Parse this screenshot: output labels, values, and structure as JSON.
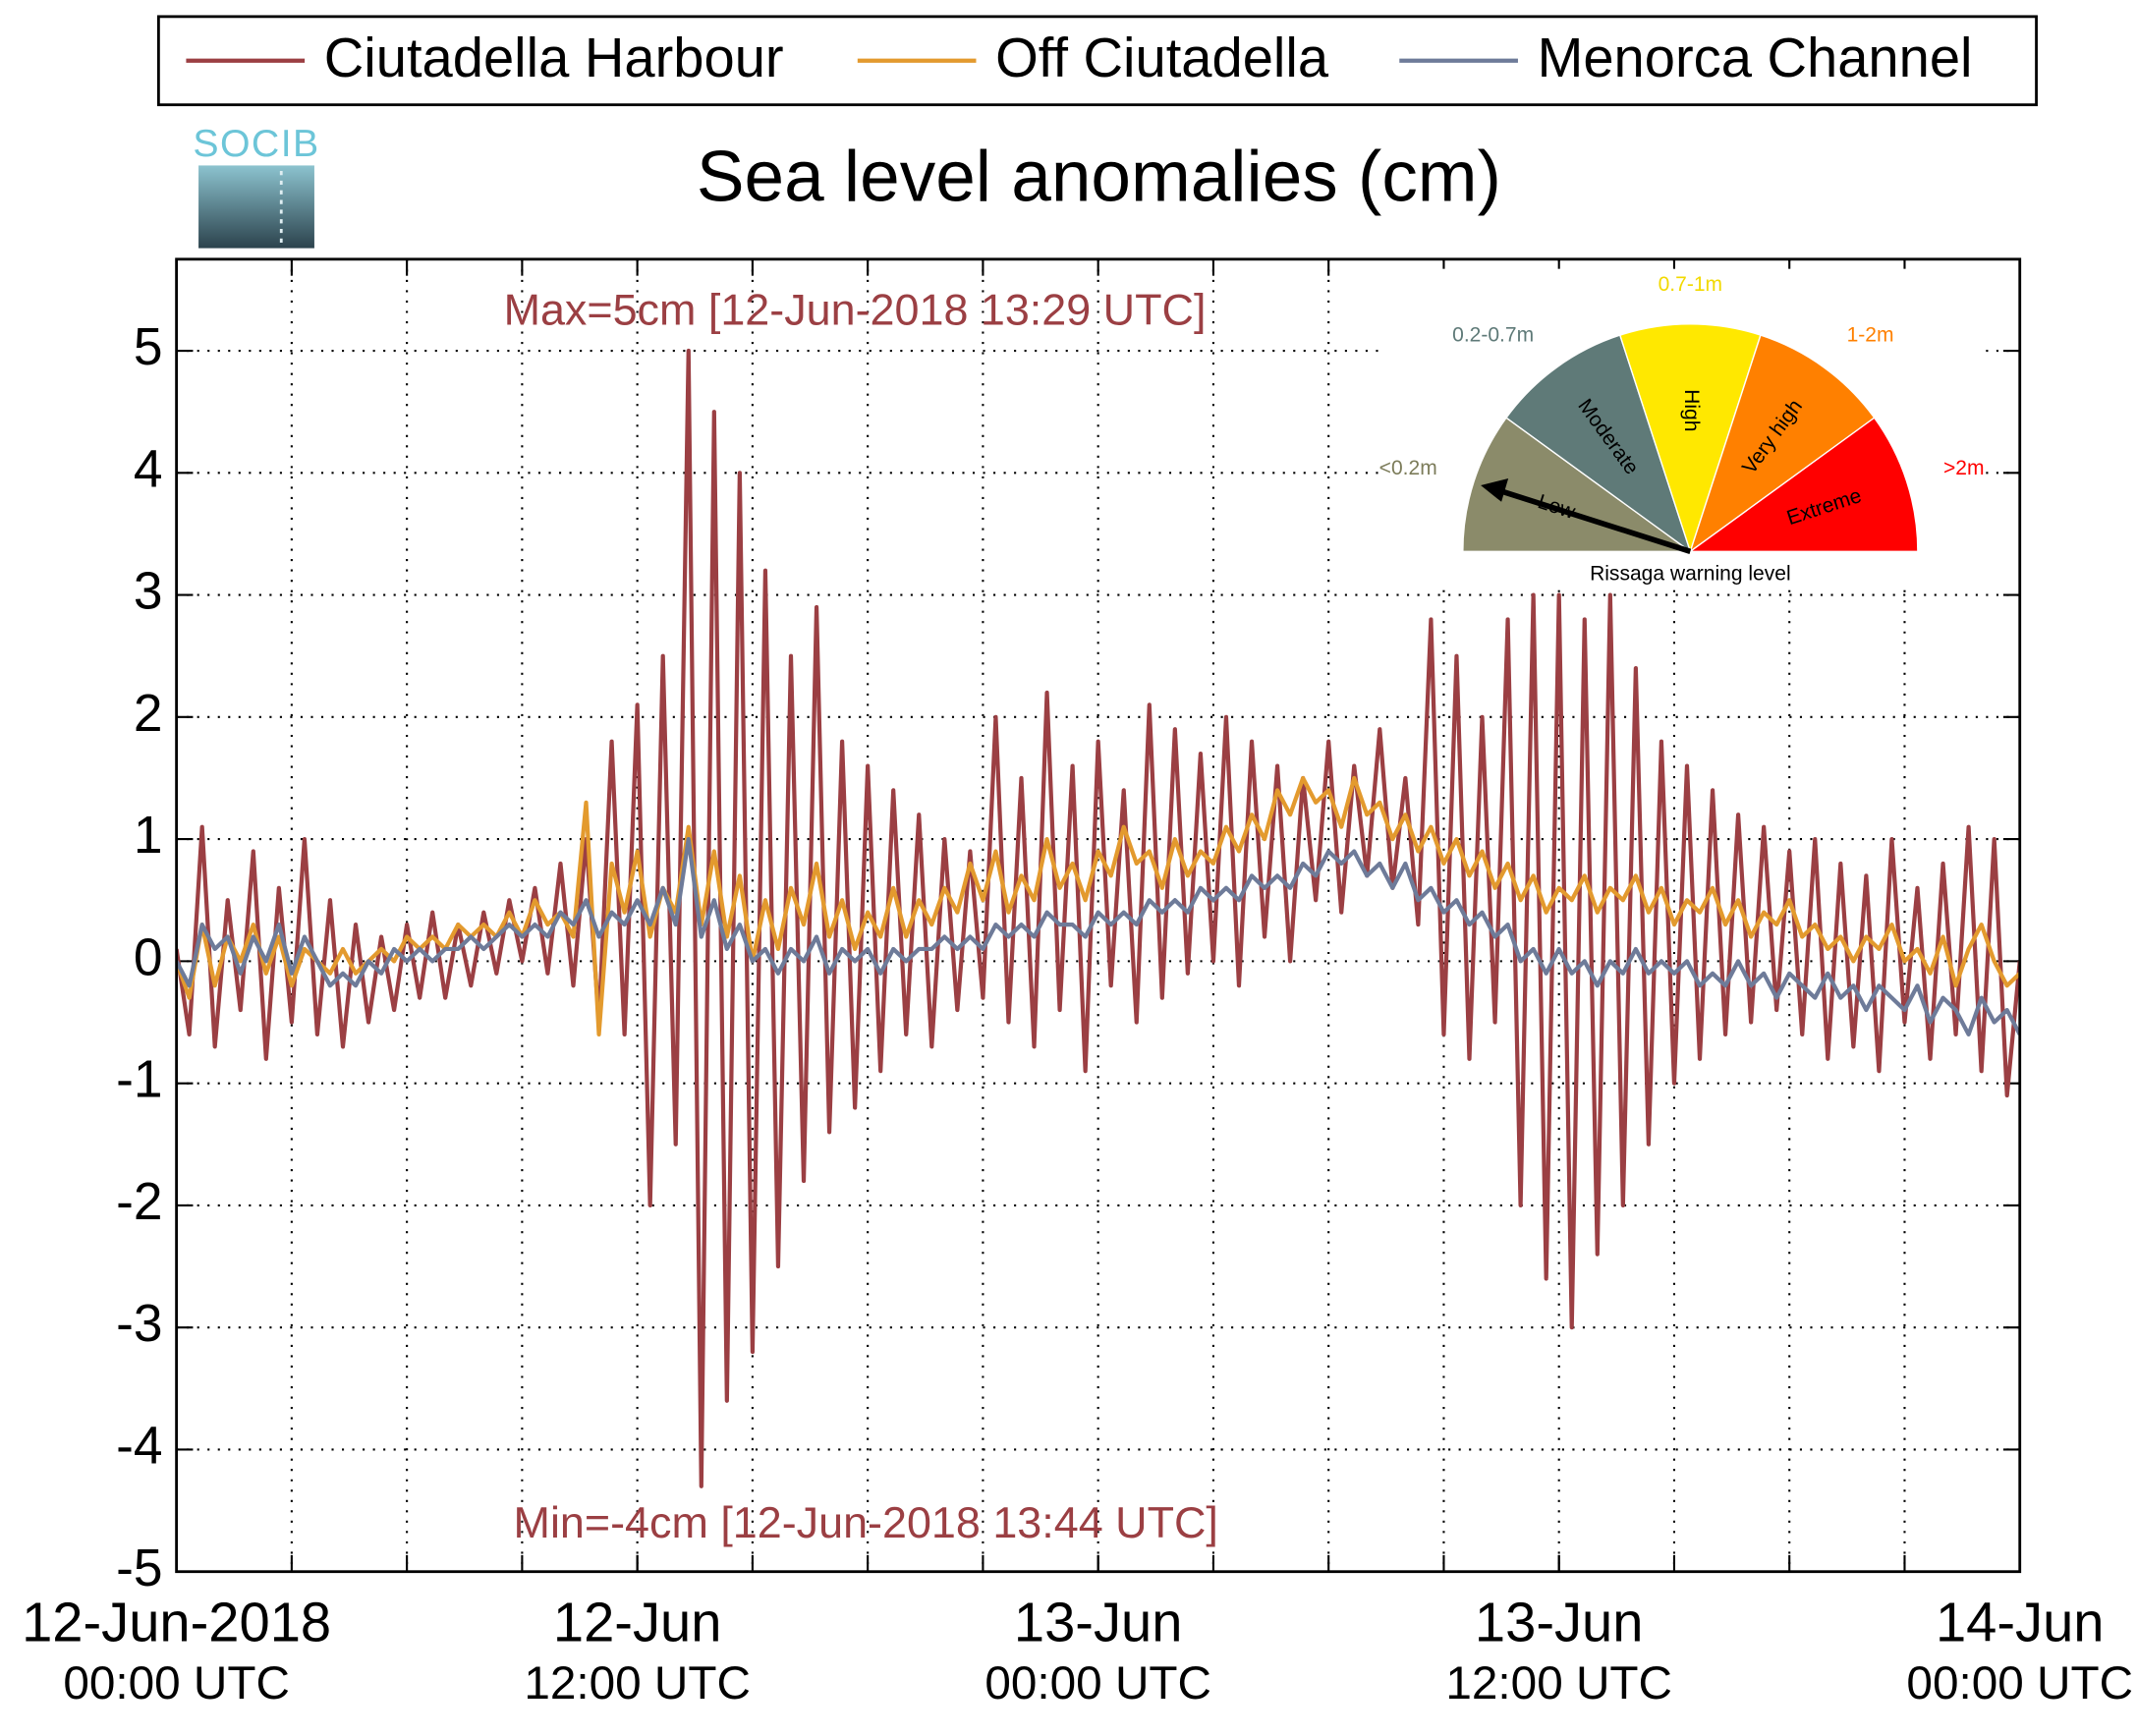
{
  "chart_data": {
    "type": "line",
    "title": "Sea level anomalies (cm)",
    "logo": "SOCIB",
    "legend": "top",
    "grid": true,
    "annotations": [
      {
        "text": "Max=5cm [12-Jun-2018 13:29 UTC]"
      },
      {
        "text": "Min=-4cm [12-Jun-2018 13:44 UTC]"
      }
    ],
    "xlim": [
      0,
      2880
    ],
    "xticks": [
      {
        "value": 0,
        "label": "12-Jun-2018",
        "label2": "00:00 UTC"
      },
      {
        "value": 720,
        "label": "12-Jun",
        "label2": "12:00 UTC"
      },
      {
        "value": 1440,
        "label": "13-Jun",
        "label2": "00:00 UTC"
      },
      {
        "value": 2160,
        "label": "13-Jun",
        "label2": "12:00 UTC"
      },
      {
        "value": 2880,
        "label": "14-Jun",
        "label2": "00:00 UTC"
      }
    ],
    "xminorticks": [
      180,
      360,
      540,
      720,
      900,
      1080,
      1260,
      1440,
      1620,
      1800,
      1980,
      2160,
      2340,
      2520,
      2700
    ],
    "ylim": [
      -5,
      5.75
    ],
    "yticks": [
      -5,
      -4,
      -3,
      -2,
      -1,
      0,
      1,
      2,
      3,
      4,
      5
    ],
    "x": [
      0,
      20,
      40,
      60,
      80,
      100,
      120,
      140,
      160,
      180,
      200,
      220,
      240,
      260,
      280,
      300,
      320,
      340,
      360,
      380,
      400,
      420,
      440,
      460,
      480,
      500,
      520,
      540,
      560,
      580,
      600,
      620,
      640,
      660,
      680,
      700,
      720,
      740,
      760,
      780,
      800,
      820,
      840,
      860,
      880,
      900,
      920,
      940,
      960,
      980,
      1000,
      1020,
      1040,
      1060,
      1080,
      1100,
      1120,
      1140,
      1160,
      1180,
      1200,
      1220,
      1240,
      1260,
      1280,
      1300,
      1320,
      1340,
      1360,
      1380,
      1400,
      1420,
      1440,
      1460,
      1480,
      1500,
      1520,
      1540,
      1560,
      1580,
      1600,
      1620,
      1640,
      1660,
      1680,
      1700,
      1720,
      1740,
      1760,
      1780,
      1800,
      1820,
      1840,
      1860,
      1880,
      1900,
      1920,
      1940,
      1960,
      1980,
      2000,
      2020,
      2040,
      2060,
      2080,
      2100,
      2120,
      2140,
      2160,
      2180,
      2200,
      2220,
      2240,
      2260,
      2280,
      2300,
      2320,
      2340,
      2360,
      2380,
      2400,
      2420,
      2440,
      2460,
      2480,
      2500,
      2520,
      2540,
      2560,
      2580,
      2600,
      2620,
      2640,
      2660,
      2680,
      2700,
      2720,
      2740,
      2760,
      2780,
      2800,
      2820,
      2840,
      2860,
      2880
    ],
    "series": [
      {
        "name": "Ciutadella Harbour",
        "color": "#9b3f43",
        "values": [
          0.1,
          -0.6,
          1.1,
          -0.7,
          0.5,
          -0.4,
          0.9,
          -0.8,
          0.6,
          -0.5,
          1.0,
          -0.6,
          0.5,
          -0.7,
          0.3,
          -0.5,
          0.2,
          -0.4,
          0.3,
          -0.3,
          0.4,
          -0.3,
          0.3,
          -0.2,
          0.4,
          -0.1,
          0.5,
          0.0,
          0.6,
          -0.1,
          0.8,
          -0.2,
          1.0,
          -0.5,
          1.8,
          -0.6,
          2.1,
          -2.0,
          2.5,
          -1.5,
          5.0,
          -4.3,
          4.5,
          -3.6,
          4.0,
          -3.2,
          3.2,
          -2.5,
          2.5,
          -1.8,
          2.9,
          -1.4,
          1.8,
          -1.2,
          1.6,
          -0.9,
          1.4,
          -0.6,
          1.2,
          -0.7,
          1.0,
          -0.4,
          0.9,
          -0.3,
          2.0,
          -0.5,
          1.5,
          -0.7,
          2.2,
          -0.4,
          1.6,
          -0.9,
          1.8,
          -0.2,
          1.4,
          -0.5,
          2.1,
          -0.3,
          1.9,
          -0.1,
          1.7,
          0.0,
          2.0,
          -0.2,
          1.8,
          0.2,
          1.6,
          0.0,
          1.5,
          0.5,
          1.8,
          0.4,
          1.6,
          0.7,
          1.9,
          0.6,
          1.5,
          0.3,
          2.8,
          -0.6,
          2.5,
          -0.8,
          2.0,
          -0.5,
          2.8,
          -2.0,
          3.0,
          -2.6,
          3.0,
          -3.0,
          2.8,
          -2.4,
          3.0,
          -2.0,
          2.4,
          -1.5,
          1.8,
          -1.0,
          1.6,
          -0.8,
          1.4,
          -0.6,
          1.2,
          -0.5,
          1.1,
          -0.4,
          0.9,
          -0.6,
          1.0,
          -0.8,
          0.8,
          -0.7,
          0.7,
          -0.9,
          1.0,
          -0.5,
          0.6,
          -0.8,
          0.8,
          -0.6,
          1.1,
          -0.9,
          1.0,
          -1.1,
          0.0
        ]
      },
      {
        "name": "Off Ciutadella",
        "color": "#e39a2e",
        "values": [
          0.0,
          -0.3,
          0.3,
          -0.2,
          0.2,
          0.0,
          0.3,
          -0.1,
          0.2,
          -0.2,
          0.1,
          0.0,
          -0.1,
          0.1,
          -0.1,
          0.0,
          0.1,
          0.0,
          0.2,
          0.1,
          0.2,
          0.1,
          0.3,
          0.2,
          0.3,
          0.2,
          0.4,
          0.2,
          0.5,
          0.3,
          0.4,
          0.2,
          1.3,
          -0.6,
          0.8,
          0.4,
          0.9,
          0.2,
          0.6,
          0.4,
          1.1,
          0.3,
          0.9,
          0.2,
          0.7,
          0.0,
          0.5,
          0.1,
          0.6,
          0.3,
          0.8,
          0.2,
          0.5,
          0.1,
          0.4,
          0.2,
          0.6,
          0.2,
          0.5,
          0.3,
          0.6,
          0.4,
          0.8,
          0.5,
          0.9,
          0.4,
          0.7,
          0.5,
          1.0,
          0.6,
          0.8,
          0.5,
          0.9,
          0.7,
          1.1,
          0.8,
          0.9,
          0.6,
          1.0,
          0.7,
          0.9,
          0.8,
          1.1,
          0.9,
          1.2,
          1.0,
          1.4,
          1.2,
          1.5,
          1.3,
          1.4,
          1.1,
          1.5,
          1.2,
          1.3,
          1.0,
          1.2,
          0.9,
          1.1,
          0.8,
          1.0,
          0.7,
          0.9,
          0.6,
          0.8,
          0.5,
          0.7,
          0.4,
          0.6,
          0.5,
          0.7,
          0.4,
          0.6,
          0.5,
          0.7,
          0.4,
          0.6,
          0.3,
          0.5,
          0.4,
          0.6,
          0.3,
          0.5,
          0.2,
          0.4,
          0.3,
          0.5,
          0.2,
          0.3,
          0.1,
          0.2,
          0.0,
          0.2,
          0.1,
          0.3,
          0.0,
          0.1,
          -0.1,
          0.2,
          -0.2,
          0.1,
          0.3,
          0.0,
          -0.2,
          -0.1
        ]
      },
      {
        "name": "Menorca Channel",
        "color": "#6e7b99",
        "values": [
          0.0,
          -0.2,
          0.3,
          0.1,
          0.2,
          -0.1,
          0.2,
          0.0,
          0.3,
          -0.1,
          0.2,
          0.0,
          -0.2,
          -0.1,
          -0.2,
          0.0,
          -0.1,
          0.1,
          0.0,
          0.1,
          0.0,
          0.1,
          0.1,
          0.2,
          0.1,
          0.2,
          0.3,
          0.2,
          0.3,
          0.2,
          0.4,
          0.3,
          0.5,
          0.2,
          0.4,
          0.3,
          0.5,
          0.3,
          0.6,
          0.3,
          1.0,
          0.2,
          0.5,
          0.1,
          0.3,
          0.0,
          0.1,
          -0.1,
          0.1,
          0.0,
          0.2,
          -0.1,
          0.1,
          0.0,
          0.1,
          -0.1,
          0.1,
          0.0,
          0.1,
          0.1,
          0.2,
          0.1,
          0.2,
          0.1,
          0.3,
          0.2,
          0.3,
          0.2,
          0.4,
          0.3,
          0.3,
          0.2,
          0.4,
          0.3,
          0.4,
          0.3,
          0.5,
          0.4,
          0.5,
          0.4,
          0.6,
          0.5,
          0.6,
          0.5,
          0.7,
          0.6,
          0.7,
          0.6,
          0.8,
          0.7,
          0.9,
          0.8,
          0.9,
          0.7,
          0.8,
          0.6,
          0.8,
          0.5,
          0.6,
          0.4,
          0.5,
          0.3,
          0.4,
          0.2,
          0.3,
          0.0,
          0.1,
          -0.1,
          0.1,
          -0.1,
          0.0,
          -0.2,
          0.0,
          -0.1,
          0.1,
          -0.1,
          0.0,
          -0.1,
          0.0,
          -0.2,
          -0.1,
          -0.2,
          0.0,
          -0.2,
          -0.1,
          -0.3,
          -0.1,
          -0.2,
          -0.3,
          -0.1,
          -0.3,
          -0.2,
          -0.4,
          -0.2,
          -0.3,
          -0.4,
          -0.2,
          -0.5,
          -0.3,
          -0.4,
          -0.6,
          -0.3,
          -0.5,
          -0.4,
          -0.6
        ]
      }
    ],
    "gauge": {
      "title": "Rissaga warning level",
      "sectors": [
        {
          "name": "Low",
          "range": "<0.2m",
          "color": "#8b8b6a",
          "label_color": "#7c7c5a"
        },
        {
          "name": "Moderate",
          "range": "0.2-0.7m",
          "color": "#5f7a78",
          "label_color": "#5f7a78"
        },
        {
          "name": "High",
          "range": "0.7-1m",
          "color": "#ffe800",
          "label_color": "#f2d900"
        },
        {
          "name": "Very high",
          "range": "1-2m",
          "color": "#ff8000",
          "label_color": "#ff8000"
        },
        {
          "name": "Extreme",
          "range": ">2m",
          "color": "#ff0000",
          "label_color": "#ff0000"
        }
      ]
    }
  }
}
